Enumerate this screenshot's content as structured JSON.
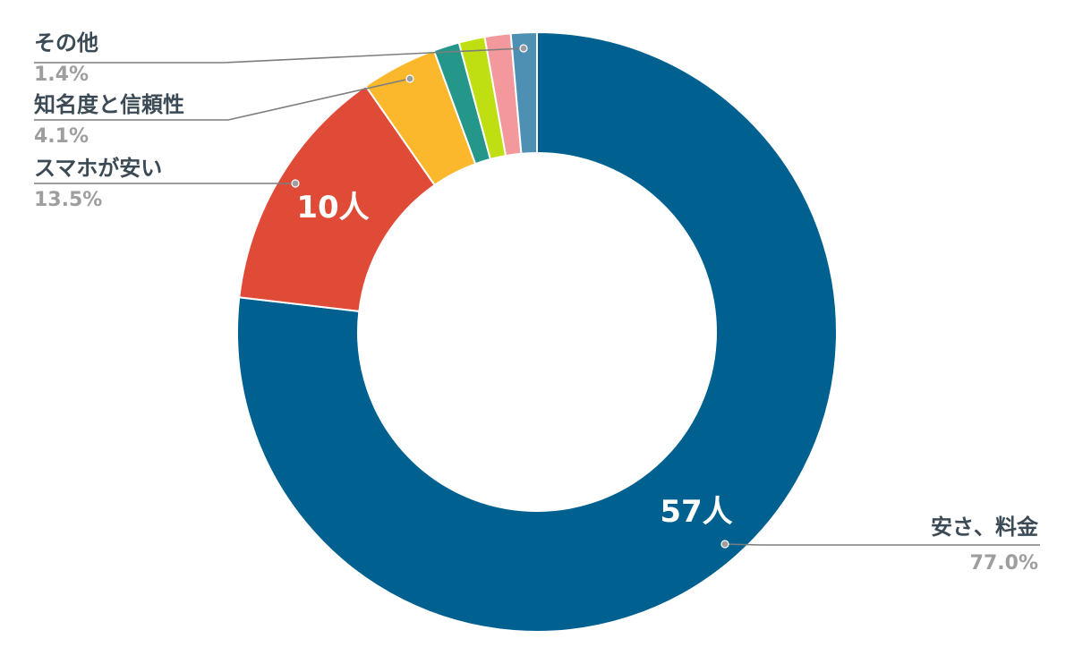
{
  "chart_data": {
    "type": "pie",
    "variant": "donut",
    "slices": [
      {
        "name": "安さ、料金",
        "percent_label": "77.0%",
        "value": 77.0,
        "count_label": "57人",
        "color": "#006191"
      },
      {
        "name": "スマホが安い",
        "percent_label": "13.5%",
        "value": 13.5,
        "count_label": "10人",
        "color": "#e04b38"
      },
      {
        "name": "知名度と信頼性",
        "percent_label": "4.1%",
        "value": 4.1,
        "count_label": "",
        "color": "#fbb82d"
      },
      {
        "name": "",
        "percent_label": "",
        "value": 1.4,
        "count_label": "",
        "color": "#25968a"
      },
      {
        "name": "",
        "percent_label": "",
        "value": 1.4,
        "count_label": "",
        "color": "#bfdf12"
      },
      {
        "name": "",
        "percent_label": "",
        "value": 1.4,
        "count_label": "",
        "color": "#f3989c"
      },
      {
        "name": "その他",
        "percent_label": "1.4%",
        "value": 1.4,
        "count_label": "",
        "color": "#4e8fb4"
      }
    ],
    "legend": "none",
    "label_style": "callout"
  }
}
